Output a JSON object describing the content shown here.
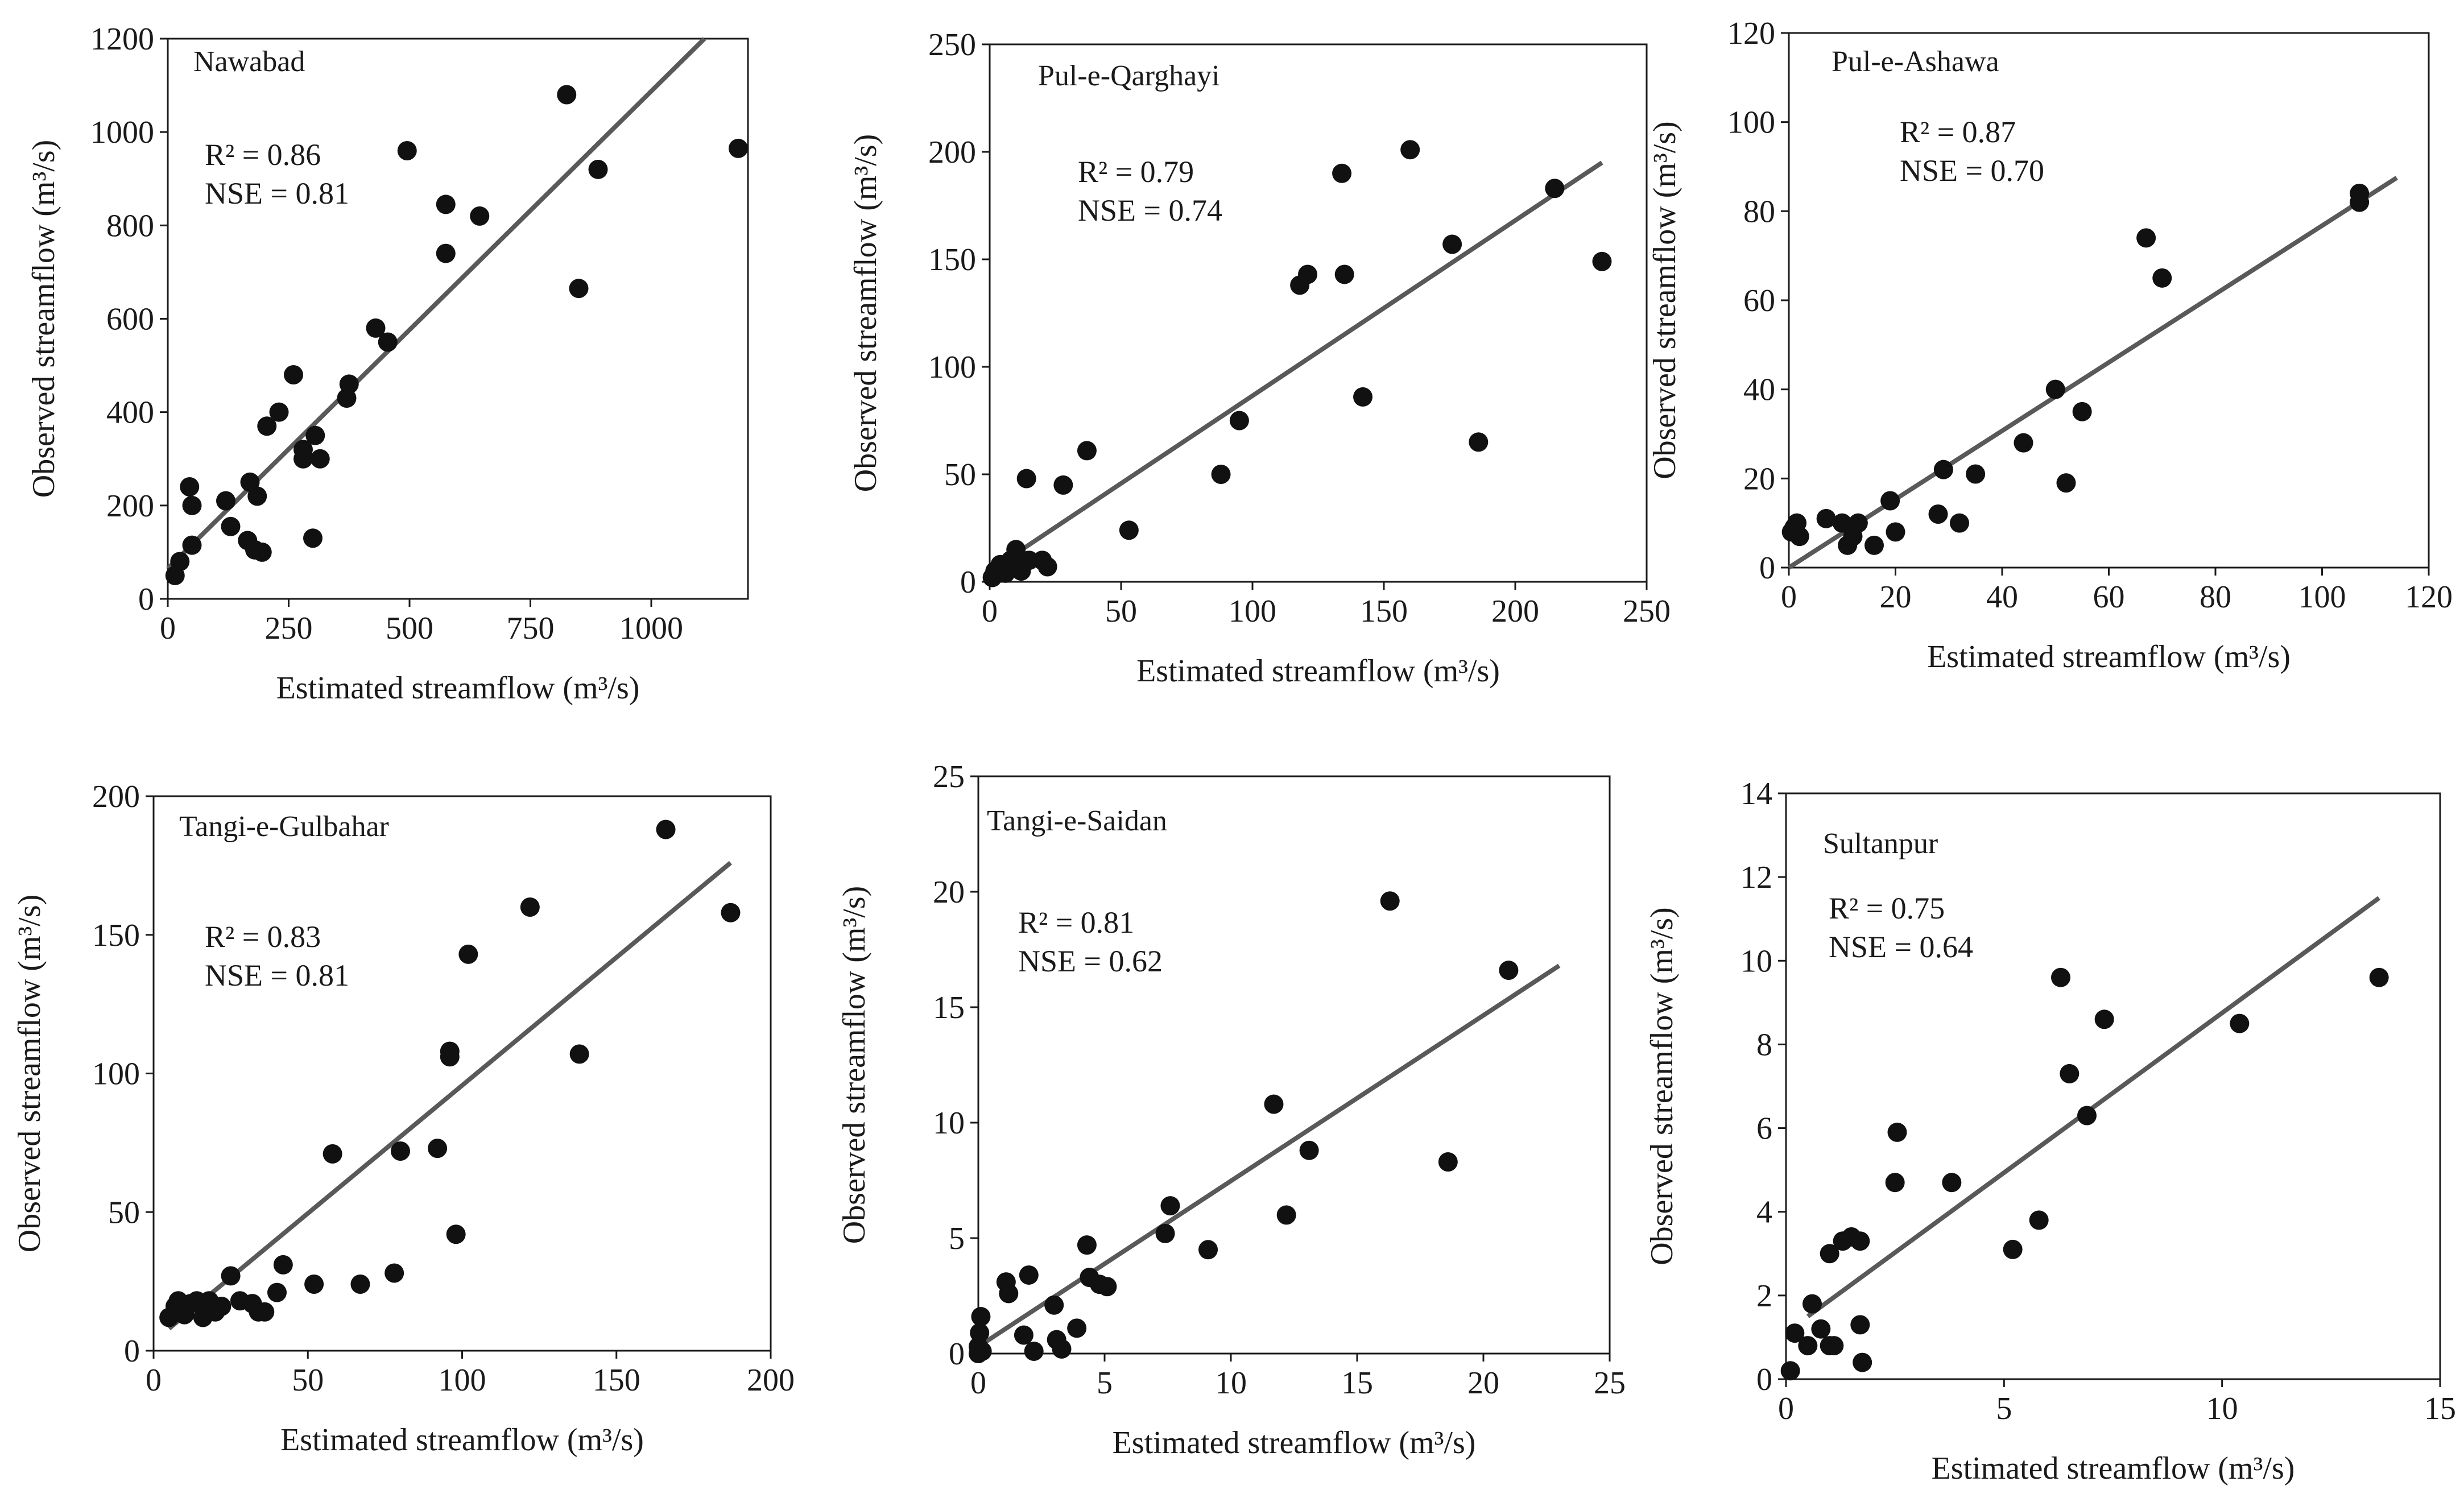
{
  "styles": {
    "point_color": "#111111",
    "line_color": "#595959",
    "axis_color": "#1a1a1a"
  },
  "chart_data": [
    {
      "type": "scatter",
      "title": "Nawabad",
      "xlabel": "Estimated streamflow (m³/s)",
      "ylabel": "Observed streamflow (m³/s)",
      "xlim": [
        0,
        1200
      ],
      "ylim": [
        0,
        1200
      ],
      "xticks": [
        0,
        250,
        500,
        750,
        1000
      ],
      "yticks": [
        0,
        200,
        400,
        600,
        800,
        1000,
        1200
      ],
      "stats": [
        "R² = 0.86",
        "NSE = 0.81"
      ],
      "trendline": {
        "x": [
          0,
          1110
        ],
        "y": [
          65,
          1200
        ]
      },
      "x": [
        15,
        25,
        45,
        50,
        50,
        120,
        130,
        165,
        170,
        180,
        185,
        195,
        205,
        230,
        260,
        280,
        280,
        300,
        305,
        315,
        370,
        375,
        430,
        455,
        495,
        575,
        575,
        645,
        825,
        850,
        890,
        1180
      ],
      "y": [
        50,
        80,
        240,
        115,
        200,
        210,
        155,
        125,
        250,
        105,
        220,
        100,
        370,
        400,
        480,
        300,
        320,
        130,
        350,
        300,
        430,
        460,
        580,
        550,
        960,
        845,
        740,
        820,
        1080,
        665,
        920,
        965
      ]
    },
    {
      "type": "scatter",
      "title": "Pul-e-Qarghayi",
      "xlabel": "Estimated streamflow (m³/s)",
      "ylabel": "Observed streamflow (m³/s)",
      "xlim": [
        0,
        250
      ],
      "ylim": [
        0,
        250
      ],
      "xticks": [
        0,
        50,
        100,
        150,
        200,
        250
      ],
      "yticks": [
        0,
        50,
        100,
        150,
        200,
        250
      ],
      "stats": [
        "R² = 0.79",
        "NSE = 0.74"
      ],
      "trendline": {
        "x": [
          0,
          233
        ],
        "y": [
          5,
          195
        ]
      },
      "x": [
        1,
        2,
        4,
        6,
        8,
        10,
        12,
        14,
        15,
        20,
        22,
        28,
        37,
        53,
        88,
        95,
        118,
        121,
        134,
        135,
        142,
        160,
        176,
        186,
        215,
        233
      ],
      "y": [
        2,
        5,
        8,
        4,
        10,
        15,
        5,
        48,
        10,
        10,
        7,
        45,
        61,
        24,
        50,
        75,
        138,
        143,
        190,
        143,
        86,
        201,
        157,
        65,
        183,
        149
      ]
    },
    {
      "type": "scatter",
      "title": "Pul-e-Ashawa",
      "xlabel": "Estimated streamflow (m³/s)",
      "ylabel": "Observed streamflow (m³/s)",
      "xlim": [
        0,
        120
      ],
      "ylim": [
        0,
        120
      ],
      "xticks": [
        0,
        20,
        40,
        60,
        80,
        100,
        120
      ],
      "yticks": [
        0,
        20,
        40,
        60,
        80,
        100,
        120
      ],
      "stats": [
        "R² = 0.87",
        "NSE = 0.70"
      ],
      "trendline": {
        "x": [
          0,
          114
        ],
        "y": [
          0,
          87.5
        ]
      },
      "x": [
        0.5,
        1,
        1.5,
        2,
        7,
        10,
        11,
        12,
        13,
        16,
        19,
        20,
        28,
        29,
        32,
        35,
        44,
        50,
        52,
        55,
        67,
        70,
        107,
        107
      ],
      "y": [
        8,
        9,
        10,
        7,
        11,
        10,
        5,
        7,
        10,
        5,
        15,
        8,
        12,
        22,
        10,
        21,
        28,
        40,
        19,
        35,
        74,
        65,
        84,
        82
      ]
    },
    {
      "type": "scatter",
      "title": "Tangi-e-Gulbahar",
      "xlabel": "Estimated streamflow (m³/s)",
      "ylabel": "Observed streamflow (m³/s)",
      "xlim": [
        0,
        200
      ],
      "ylim": [
        0,
        200
      ],
      "xticks": [
        0,
        50,
        100,
        150,
        200
      ],
      "yticks": [
        0,
        50,
        100,
        150,
        200
      ],
      "stats": [
        "R² = 0.83",
        "NSE = 0.81"
      ],
      "trendline": {
        "x": [
          5,
          187
        ],
        "y": [
          8,
          176
        ]
      },
      "x": [
        5,
        7,
        8,
        10,
        12,
        14,
        16,
        18,
        20,
        22,
        25,
        28,
        32,
        34,
        36,
        40,
        42,
        52,
        58,
        67,
        78,
        80,
        92,
        96,
        96,
        98,
        102,
        122,
        138,
        166,
        187
      ],
      "y": [
        12,
        16,
        18,
        13,
        17,
        18,
        12,
        18,
        14,
        16,
        27,
        18,
        17,
        14,
        14,
        21,
        31,
        24,
        71,
        24,
        28,
        72,
        73,
        106,
        108,
        42,
        143,
        160,
        107,
        188,
        158
      ]
    },
    {
      "type": "scatter",
      "title": "Tangi-e-Saidan",
      "xlabel": "Estimated streamflow (m³/s)",
      "ylabel": "Observed streamflow (m³/s)",
      "xlim": [
        0,
        25
      ],
      "ylim": [
        0,
        25
      ],
      "xticks": [
        0,
        5,
        10,
        15,
        20,
        25
      ],
      "yticks": [
        0,
        5,
        10,
        15,
        20,
        25
      ],
      "stats": [
        "R² = 0.81",
        "NSE = 0.62"
      ],
      "trendline": {
        "x": [
          0,
          23
        ],
        "y": [
          0.3,
          16.8
        ]
      },
      "x": [
        0,
        0,
        0.05,
        0.1,
        0.15,
        1.1,
        1.2,
        1.8,
        2.0,
        2.2,
        3.0,
        3.1,
        3.3,
        3.9,
        4.3,
        4.4,
        4.8,
        5.1,
        7.4,
        7.6,
        9.1,
        11.7,
        12.2,
        13.1,
        16.3,
        18.6,
        21.0
      ],
      "y": [
        0,
        0.3,
        0.9,
        1.6,
        0.1,
        3.1,
        2.6,
        0.8,
        3.4,
        0.1,
        2.1,
        0.6,
        0.2,
        1.1,
        4.7,
        3.3,
        3.0,
        2.9,
        5.2,
        6.4,
        4.5,
        10.8,
        6.0,
        8.8,
        19.6,
        8.3,
        16.6
      ]
    },
    {
      "type": "scatter",
      "title": "Sultanpur",
      "xlabel": "Estimated streamflow (m³/s)",
      "ylabel": "Observed streamflow (m³/s)",
      "xlim": [
        0,
        15
      ],
      "ylim": [
        0,
        14
      ],
      "xticks": [
        0,
        5,
        10,
        15
      ],
      "yticks": [
        0,
        2,
        4,
        6,
        8,
        10,
        12,
        14
      ],
      "stats": [
        "R² = 0.75",
        "NSE = 0.64"
      ],
      "trendline": {
        "x": [
          0.5,
          13.6
        ],
        "y": [
          1.5,
          11.5
        ]
      },
      "x": [
        0.1,
        0.2,
        0.5,
        0.6,
        0.8,
        1.0,
        1.0,
        1.1,
        1.3,
        1.5,
        1.7,
        1.7,
        1.75,
        2.5,
        2.55,
        3.8,
        5.2,
        5.8,
        6.3,
        6.5,
        6.9,
        7.3,
        10.4,
        13.6
      ],
      "y": [
        0.2,
        1.1,
        0.8,
        1.8,
        1.2,
        0.8,
        3.0,
        0.8,
        3.3,
        3.4,
        3.3,
        1.3,
        0.4,
        4.7,
        5.9,
        4.7,
        3.1,
        3.8,
        9.6,
        7.3,
        6.3,
        8.6,
        8.5,
        9.6
      ]
    }
  ]
}
